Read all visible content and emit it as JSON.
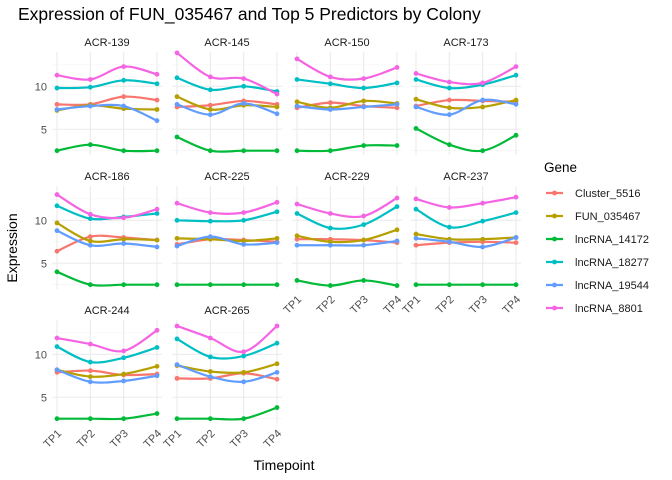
{
  "chart_data": {
    "type": "line",
    "title": "Expression of FUN_035467 and Top 5 Predictors by Colony",
    "xlabel": "Timepoint",
    "ylabel": "Expression",
    "x": [
      "TP1",
      "TP2",
      "TP3",
      "TP4"
    ],
    "y_ticks": [
      5,
      10
    ],
    "ylim": [
      2,
      14
    ],
    "grid": true,
    "legend_title": "Gene",
    "legend_position": "right",
    "genes": [
      {
        "name": "Cluster_5516",
        "color": "#F8766D"
      },
      {
        "name": "FUN_035467",
        "color": "#B79F00"
      },
      {
        "name": "lncRNA_14172",
        "color": "#00BA38"
      },
      {
        "name": "lncRNA_18277",
        "color": "#00BFC4"
      },
      {
        "name": "lncRNA_19544",
        "color": "#619CFF"
      },
      {
        "name": "lncRNA_8801",
        "color": "#F564E3"
      }
    ],
    "panels": [
      {
        "colony": "ACR-139",
        "series": {
          "Cluster_5516": [
            7.9,
            7.9,
            8.8,
            8.4
          ],
          "FUN_035467": [
            7.2,
            7.8,
            7.4,
            7.3
          ],
          "lncRNA_14172": [
            2.5,
            3.2,
            2.5,
            2.5
          ],
          "lncRNA_18277": [
            9.8,
            9.9,
            10.7,
            10.3
          ],
          "lncRNA_19544": [
            7.3,
            7.7,
            7.7,
            6.0
          ],
          "lncRNA_8801": [
            11.3,
            10.8,
            12.3,
            11.4
          ]
        }
      },
      {
        "colony": "ACR-145",
        "series": {
          "Cluster_5516": [
            7.6,
            7.8,
            8.3,
            7.9
          ],
          "FUN_035467": [
            8.8,
            7.3,
            7.8,
            7.6
          ],
          "lncRNA_14172": [
            4.1,
            2.5,
            2.5,
            2.5
          ],
          "lncRNA_18277": [
            11.0,
            9.6,
            10.0,
            9.4
          ],
          "lncRNA_19544": [
            7.9,
            6.7,
            8.0,
            6.8
          ],
          "lncRNA_8801": [
            13.9,
            11.1,
            10.9,
            9.1
          ]
        }
      },
      {
        "colony": "ACR-150",
        "series": {
          "Cluster_5516": [
            7.5,
            8.1,
            7.7,
            7.5
          ],
          "FUN_035467": [
            8.2,
            7.5,
            8.3,
            8.0
          ],
          "lncRNA_14172": [
            2.5,
            2.5,
            3.1,
            3.1
          ],
          "lncRNA_18277": [
            10.8,
            10.3,
            9.8,
            10.4
          ],
          "lncRNA_19544": [
            7.7,
            7.3,
            7.6,
            7.9
          ],
          "lncRNA_8801": [
            13.2,
            11.1,
            10.9,
            12.2
          ]
        }
      },
      {
        "colony": "ACR-173",
        "series": {
          "Cluster_5516": [
            7.7,
            8.4,
            8.3,
            8.2
          ],
          "FUN_035467": [
            8.5,
            7.5,
            7.6,
            8.4
          ],
          "lncRNA_14172": [
            5.1,
            3.2,
            2.5,
            4.3
          ],
          "lncRNA_18277": [
            10.8,
            9.8,
            10.2,
            11.3
          ],
          "lncRNA_19544": [
            7.6,
            6.7,
            8.4,
            7.9
          ],
          "lncRNA_8801": [
            11.5,
            10.5,
            10.4,
            12.3
          ]
        }
      },
      {
        "colony": "ACR-186",
        "series": {
          "Cluster_5516": [
            6.4,
            8.1,
            8.0,
            7.7
          ],
          "FUN_035467": [
            9.7,
            7.6,
            7.8,
            7.7
          ],
          "lncRNA_14172": [
            4.0,
            2.5,
            2.5,
            2.5
          ],
          "lncRNA_18277": [
            11.7,
            10.2,
            10.4,
            10.8
          ],
          "lncRNA_19544": [
            8.8,
            7.1,
            7.3,
            6.9
          ],
          "lncRNA_8801": [
            13.0,
            10.7,
            10.3,
            11.3
          ]
        }
      },
      {
        "colony": "ACR-225",
        "series": {
          "Cluster_5516": [
            7.2,
            7.8,
            7.7,
            7.5
          ],
          "FUN_035467": [
            7.9,
            7.8,
            7.6,
            7.9
          ],
          "lncRNA_14172": [
            2.5,
            2.5,
            2.5,
            2.5
          ],
          "lncRNA_18277": [
            10.0,
            9.9,
            10.0,
            11.0
          ],
          "lncRNA_19544": [
            7.0,
            8.1,
            7.2,
            7.4
          ],
          "lncRNA_8801": [
            12.0,
            10.9,
            10.9,
            12.1
          ]
        }
      },
      {
        "colony": "ACR-229",
        "series": {
          "Cluster_5516": [
            7.8,
            7.8,
            7.7,
            7.4
          ],
          "FUN_035467": [
            8.2,
            7.5,
            7.7,
            8.9
          ],
          "lncRNA_14172": [
            3.0,
            2.4,
            3.0,
            2.4
          ],
          "lncRNA_18277": [
            10.8,
            9.1,
            9.5,
            11.6
          ],
          "lncRNA_19544": [
            7.1,
            7.1,
            7.1,
            7.6
          ],
          "lncRNA_8801": [
            11.9,
            10.8,
            10.5,
            12.6
          ]
        }
      },
      {
        "colony": "ACR-237",
        "series": {
          "Cluster_5516": [
            7.1,
            7.4,
            7.5,
            7.4
          ],
          "FUN_035467": [
            8.4,
            7.8,
            7.8,
            8.0
          ],
          "lncRNA_14172": [
            2.5,
            2.5,
            2.5,
            2.5
          ],
          "lncRNA_18277": [
            11.3,
            9.2,
            9.9,
            10.9
          ],
          "lncRNA_19544": [
            7.9,
            7.5,
            6.9,
            8.0
          ],
          "lncRNA_8801": [
            12.5,
            11.5,
            12.0,
            12.7
          ]
        }
      },
      {
        "colony": "ACR-244",
        "series": {
          "Cluster_5516": [
            7.9,
            8.1,
            7.6,
            7.7
          ],
          "FUN_035467": [
            8.2,
            7.4,
            7.7,
            8.6
          ],
          "lncRNA_14172": [
            2.5,
            2.5,
            2.5,
            3.1
          ],
          "lncRNA_18277": [
            10.9,
            9.1,
            9.6,
            10.8
          ],
          "lncRNA_19544": [
            8.2,
            6.8,
            6.9,
            7.5
          ],
          "lncRNA_8801": [
            11.9,
            11.2,
            10.4,
            12.8
          ]
        }
      },
      {
        "colony": "ACR-265",
        "series": {
          "Cluster_5516": [
            7.2,
            7.2,
            7.8,
            7.1
          ],
          "FUN_035467": [
            8.7,
            8.0,
            7.9,
            8.9
          ],
          "lncRNA_14172": [
            2.5,
            2.5,
            2.5,
            3.8
          ],
          "lncRNA_18277": [
            11.8,
            9.7,
            9.8,
            11.3
          ],
          "lncRNA_19544": [
            8.8,
            7.4,
            6.8,
            7.9
          ],
          "lncRNA_8801": [
            13.3,
            11.9,
            10.3,
            13.3
          ]
        }
      }
    ]
  }
}
